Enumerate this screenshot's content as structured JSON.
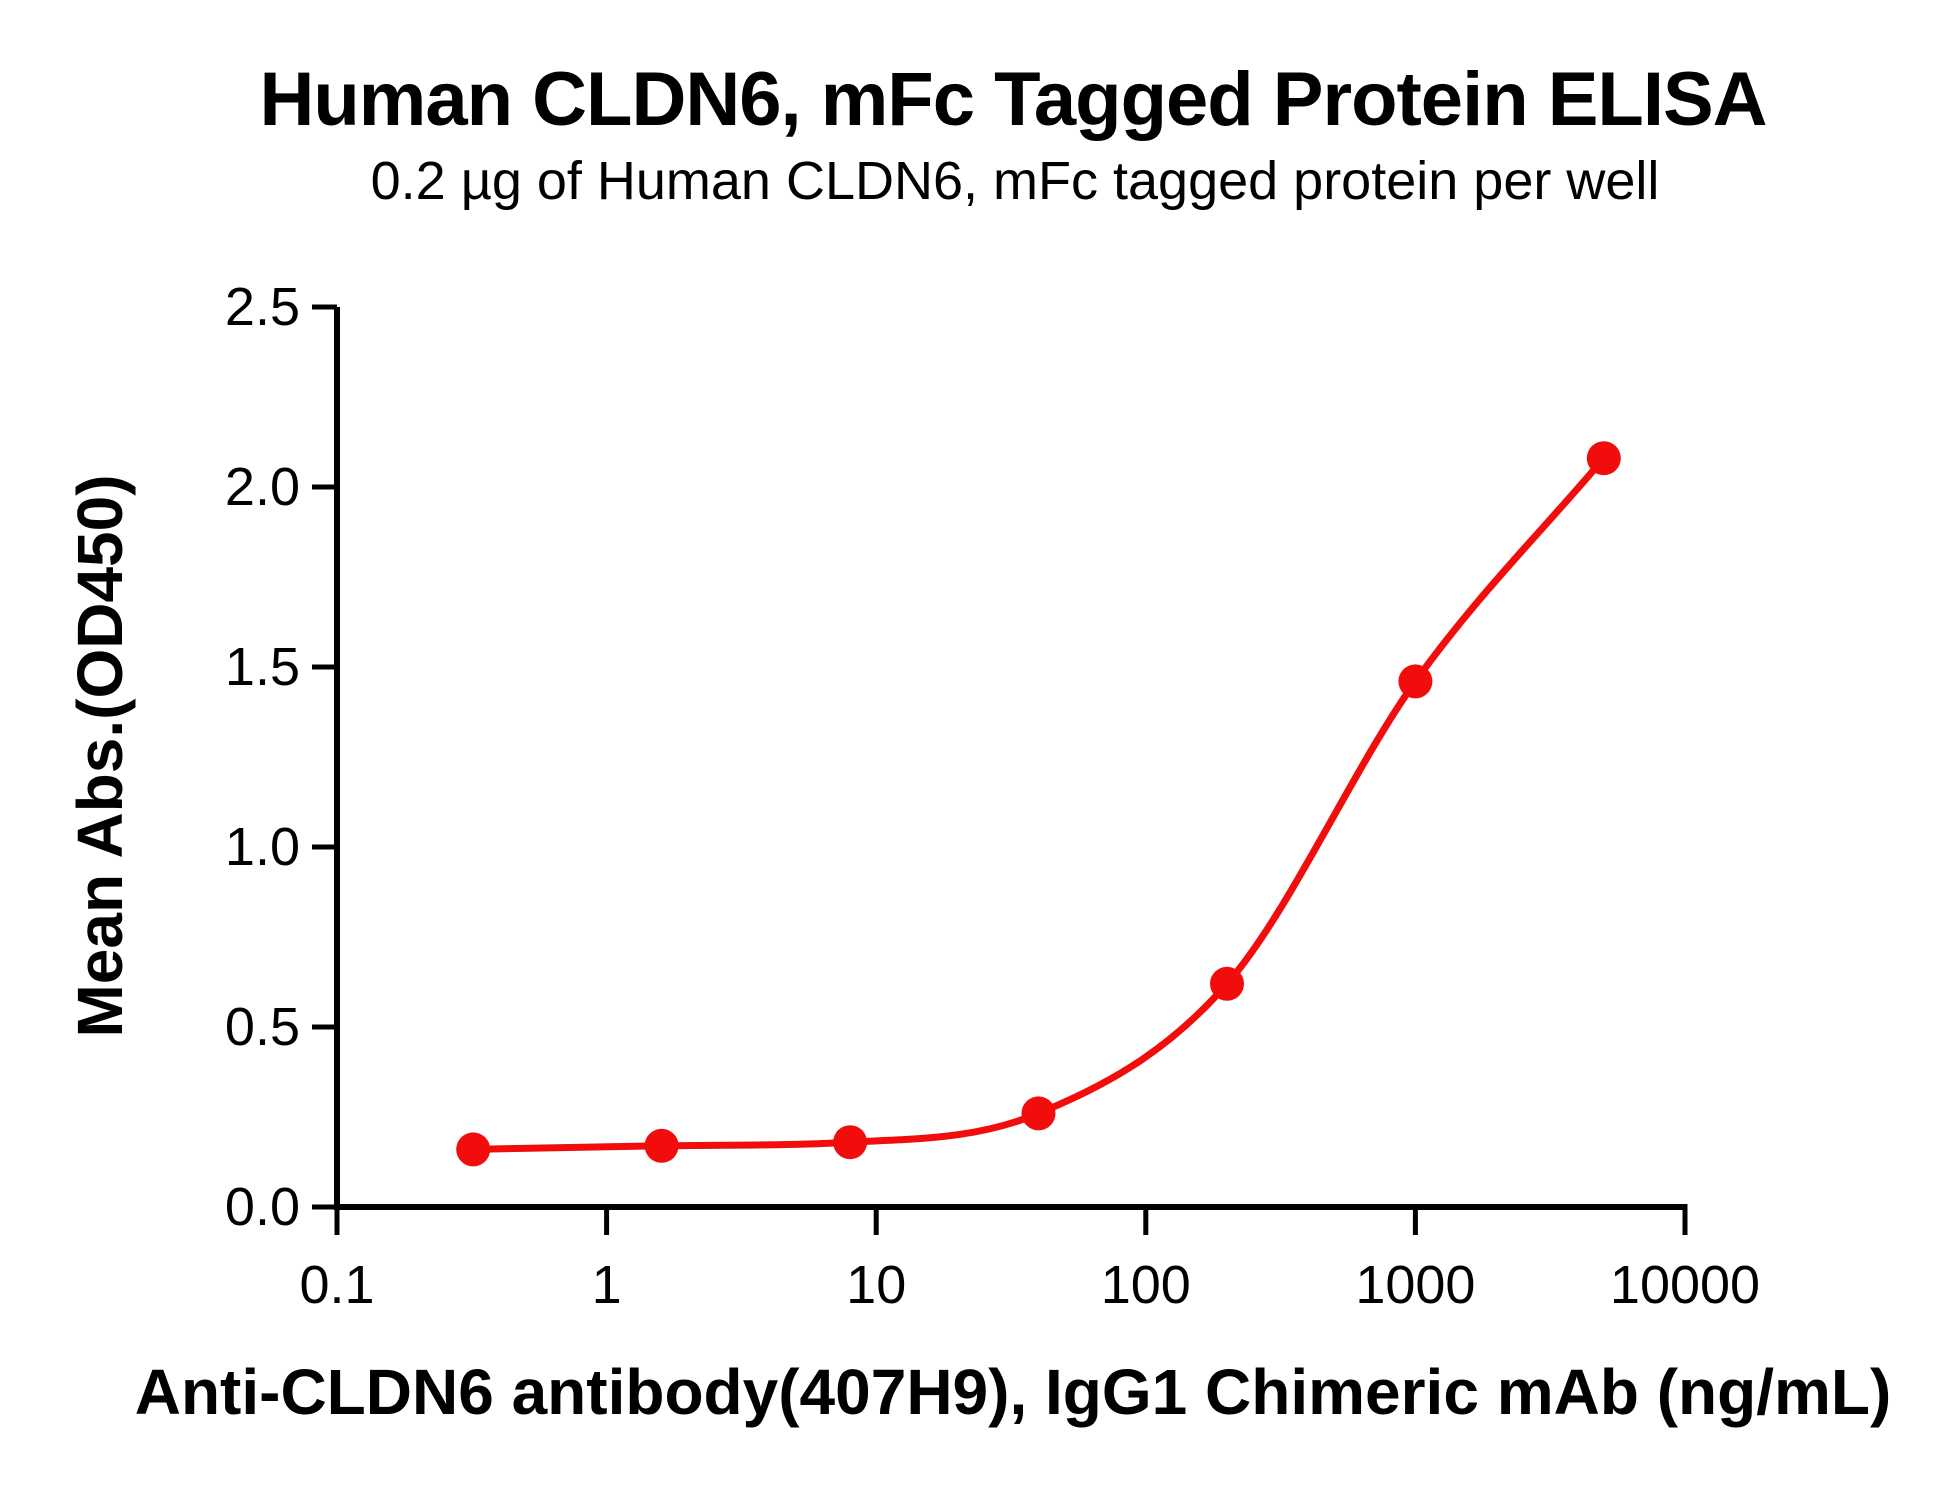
{
  "figure": {
    "title": "Human CLDN6, mFc Tagged Protein ELISA",
    "subtitle": "0.2 µg of Human CLDN6, mFc tagged protein per well"
  },
  "chart_data": {
    "type": "line",
    "title": "Human CLDN6, mFc Tagged Protein ELISA",
    "subtitle": "0.2 µg of Human CLDN6, mFc tagged protein per well",
    "xlabel": "Anti-CLDN6 antibody(407H9), IgG1 Chimeric mAb (ng/mL)",
    "ylabel": "Mean Abs.(OD450)",
    "x_scale": "log10",
    "xlim": [
      0.1,
      10000
    ],
    "ylim": [
      0.0,
      2.5
    ],
    "x_ticks": [
      "0.1",
      "1",
      "10",
      "100",
      "1000",
      "10000"
    ],
    "y_ticks": [
      "0.0",
      "0.5",
      "1.0",
      "1.5",
      "2.0",
      "2.5"
    ],
    "grid": false,
    "legend": "none",
    "series": [
      {
        "marker": "circle",
        "color": "#F20D0D",
        "x": [
          0.32,
          1.6,
          8,
          40,
          200,
          1000,
          5000
        ],
        "y": [
          0.16,
          0.17,
          0.18,
          0.26,
          0.62,
          1.46,
          2.08
        ]
      }
    ]
  },
  "colors": {
    "curve": "#F20D0D",
    "axis": "#000000",
    "text": "#000000",
    "background": "#FFFFFF"
  }
}
